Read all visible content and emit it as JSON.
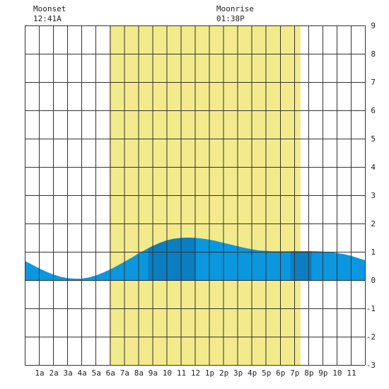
{
  "chart_data": {
    "type": "area",
    "title": "",
    "xlabel": "",
    "ylabel": "",
    "x_range_hours": [
      0,
      24
    ],
    "ylim": [
      -3,
      9
    ],
    "y_ticks": [
      "-3",
      "-2",
      "-1",
      "0",
      "1",
      "2",
      "3",
      "4",
      "5",
      "6",
      "7",
      "8",
      "9"
    ],
    "x_ticks": [
      {
        "hour": 1,
        "label": "1a"
      },
      {
        "hour": 2,
        "label": "2a"
      },
      {
        "hour": 3,
        "label": "3a"
      },
      {
        "hour": 4,
        "label": "4a"
      },
      {
        "hour": 5,
        "label": "5a"
      },
      {
        "hour": 6,
        "label": "6a"
      },
      {
        "hour": 7,
        "label": "7a"
      },
      {
        "hour": 8,
        "label": "8a"
      },
      {
        "hour": 9,
        "label": "9a"
      },
      {
        "hour": 10,
        "label": "10"
      },
      {
        "hour": 11,
        "label": "11"
      },
      {
        "hour": 12,
        "label": "12"
      },
      {
        "hour": 13,
        "label": "1p"
      },
      {
        "hour": 14,
        "label": "2p"
      },
      {
        "hour": 15,
        "label": "3p"
      },
      {
        "hour": 16,
        "label": "4p"
      },
      {
        "hour": 17,
        "label": "5p"
      },
      {
        "hour": 18,
        "label": "6p"
      },
      {
        "hour": 19,
        "label": "7p"
      },
      {
        "hour": 20,
        "label": "8p"
      },
      {
        "hour": 21,
        "label": "9p"
      },
      {
        "hour": 22,
        "label": "10"
      },
      {
        "hour": 23,
        "label": "11"
      }
    ],
    "daylight": {
      "start_hour": 5.95,
      "end_hour": 19.45
    },
    "emphasis_bands": [
      {
        "start_hour": 8.7,
        "end_hour": 12.0
      },
      {
        "start_hour": 18.75,
        "end_hour": 20.25
      }
    ],
    "tide_series": {
      "x": [
        0,
        0.5,
        1,
        1.5,
        2,
        2.5,
        3,
        3.5,
        4,
        4.5,
        5,
        5.5,
        6,
        6.5,
        7,
        7.5,
        8,
        8.5,
        9,
        9.5,
        10,
        10.5,
        11,
        11.5,
        12,
        12.5,
        13,
        13.5,
        14,
        14.5,
        15,
        15.5,
        16,
        16.5,
        17,
        17.5,
        18,
        18.5,
        19,
        19.5,
        20,
        20.5,
        21,
        21.5,
        22,
        22.5,
        23,
        23.5,
        24
      ],
      "y": [
        0.68,
        0.55,
        0.42,
        0.3,
        0.2,
        0.12,
        0.07,
        0.05,
        0.05,
        0.09,
        0.16,
        0.26,
        0.37,
        0.5,
        0.64,
        0.78,
        0.93,
        1.07,
        1.2,
        1.31,
        1.4,
        1.46,
        1.49,
        1.5,
        1.49,
        1.47,
        1.43,
        1.38,
        1.32,
        1.26,
        1.2,
        1.14,
        1.09,
        1.05,
        1.03,
        1.02,
        1.02,
        1.02,
        1.02,
        1.02,
        1.02,
        1.02,
        1.01,
        0.99,
        0.96,
        0.92,
        0.86,
        0.78,
        0.7
      ]
    },
    "colors": {
      "daylight": "#f3ea8c",
      "tide": "#0a97df",
      "tide_emphasis": "#0a7ec0",
      "grid": "#333333",
      "axis_text": "#222222",
      "background": "#ffffff"
    },
    "grid": true
  },
  "moon": {
    "moonset_label": "Moonset",
    "moonset_time": "12:41A",
    "moonrise_label": "Moonrise",
    "moonrise_time": "01:38P"
  }
}
